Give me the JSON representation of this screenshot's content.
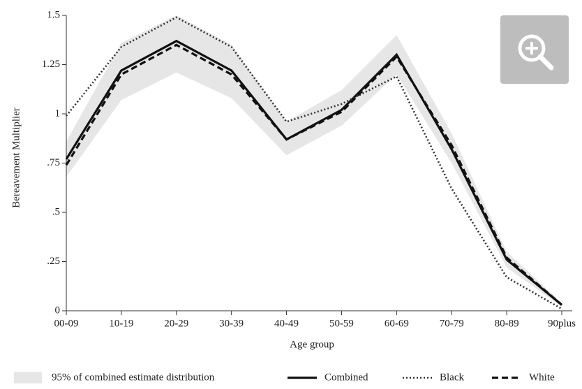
{
  "chart_data": {
    "type": "line",
    "x_label": "Age group",
    "y_label": "Bereavement Multiplier",
    "categories": [
      "00-09",
      "10-19",
      "20-29",
      "30-39",
      "40-49",
      "50-59",
      "60-69",
      "70-79",
      "80-89",
      "90plus"
    ],
    "band": {
      "name": "95% of combined estimate distribution",
      "color": "#e6e6e6",
      "lower": [
        0.68,
        1.07,
        1.21,
        1.08,
        0.79,
        0.94,
        1.2,
        0.75,
        0.22,
        0.02
      ],
      "upper": [
        0.86,
        1.36,
        1.5,
        1.35,
        0.96,
        1.12,
        1.4,
        0.9,
        0.3,
        0.04
      ]
    },
    "series": [
      {
        "name": "Combined",
        "color": "#111111",
        "style": "solid",
        "values": [
          0.77,
          1.22,
          1.37,
          1.22,
          0.87,
          1.02,
          1.3,
          0.82,
          0.26,
          0.03
        ]
      },
      {
        "name": "Black",
        "color": "#333333",
        "style": "dotted",
        "values": [
          0.99,
          1.34,
          1.49,
          1.34,
          0.96,
          1.05,
          1.19,
          0.62,
          0.17,
          0.01
        ]
      },
      {
        "name": "White",
        "color": "#111111",
        "style": "dashed",
        "values": [
          0.74,
          1.2,
          1.35,
          1.2,
          0.87,
          1.01,
          1.29,
          0.84,
          0.27,
          0.03
        ]
      }
    ],
    "ylim": [
      0,
      1.5
    ],
    "yticks": [
      0,
      {
        "value": 0.25,
        "label": ".25"
      },
      {
        "value": 0.5,
        "label": ".5"
      },
      {
        "value": 0.75,
        "label": ".75"
      },
      1,
      1.25,
      1.5
    ]
  }
}
